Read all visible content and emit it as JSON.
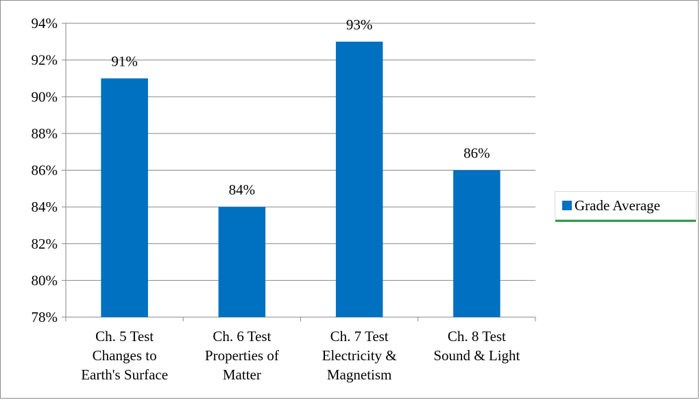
{
  "chart_data": {
    "type": "bar",
    "categories": [
      [
        "Ch. 5 Test",
        "Changes to",
        "Earth's Surface"
      ],
      [
        "Ch. 6 Test",
        "Properties of",
        "Matter"
      ],
      [
        "Ch. 7 Test",
        "Electricity &",
        "Magnetism"
      ],
      [
        "Ch. 8 Test",
        "Sound & Light"
      ]
    ],
    "series": [
      {
        "name": "Grade Average",
        "values": [
          91,
          84,
          93,
          86
        ],
        "color": "#0070c0"
      }
    ],
    "data_labels": [
      "91%",
      "84%",
      "93%",
      "86%"
    ],
    "y_ticks": [
      "78%",
      "80%",
      "82%",
      "84%",
      "86%",
      "88%",
      "90%",
      "92%",
      "94%"
    ],
    "ylim": [
      78,
      94
    ],
    "grid": true,
    "legend_position": "right",
    "title": "",
    "xlabel": "",
    "ylabel": ""
  },
  "legend": {
    "label": "Grade Average",
    "color": "#0070c0"
  }
}
